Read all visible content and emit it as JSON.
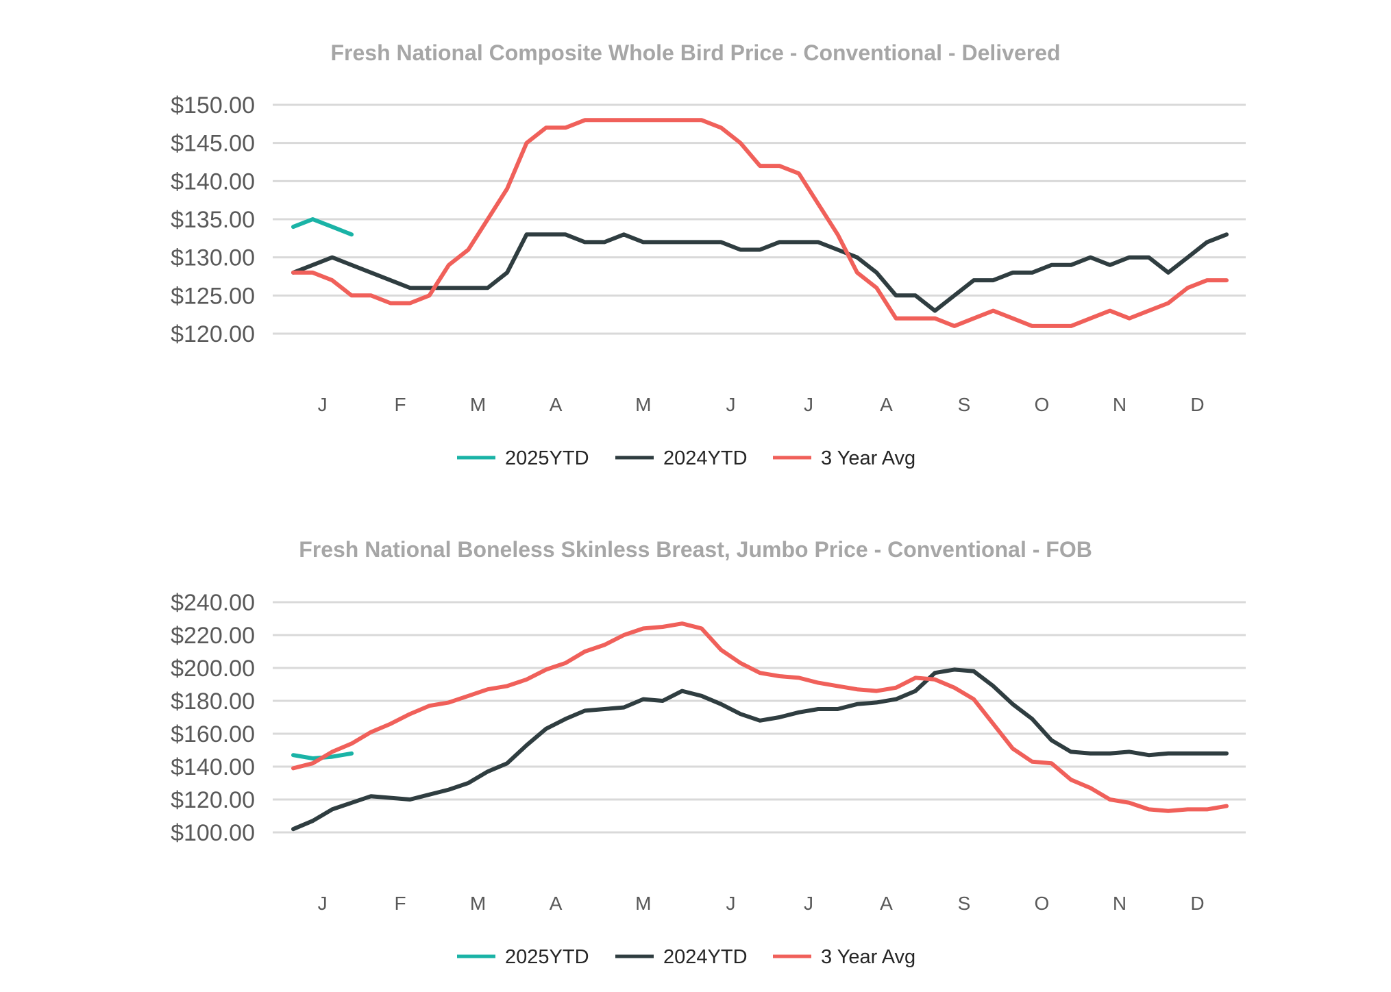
{
  "colors": {
    "s2025": "#1ab3a6",
    "s2024": "#2f3d40",
    "avg": "#f0605a",
    "grid": "#d9d9d9",
    "title": "#a6a6a6"
  },
  "chart_data": [
    {
      "type": "line",
      "title": "Fresh National Composite Whole Bird Price - Conventional - Delivered",
      "xlabel": "",
      "ylabel": "",
      "ylim": [
        120,
        150
      ],
      "yticks": [
        120,
        125,
        130,
        135,
        140,
        145,
        150
      ],
      "ytick_labels": [
        "$120.00",
        "$125.00",
        "$130.00",
        "$135.00",
        "$140.00",
        "$145.00",
        "$150.00"
      ],
      "x_range": [
        0,
        48
      ],
      "month_labels": [
        "J",
        "F",
        "M",
        "A",
        "M",
        "J",
        "J",
        "A",
        "S",
        "O",
        "N",
        "D"
      ],
      "month_positions": [
        1.5,
        5.5,
        9.5,
        13.5,
        18,
        22.5,
        26.5,
        30.5,
        34.5,
        38.5,
        42.5,
        46.5
      ],
      "series": [
        {
          "name": "2025YTD",
          "color": "#1ab3a6",
          "x": [
            0,
            1,
            2,
            3
          ],
          "values": [
            134,
            135,
            134,
            133
          ]
        },
        {
          "name": "2024YTD",
          "color": "#2f3d40",
          "x": [
            0,
            1,
            2,
            3,
            4,
            5,
            6,
            7,
            8,
            9,
            10,
            11,
            12,
            13,
            14,
            15,
            16,
            17,
            18,
            19,
            20,
            21,
            22,
            23,
            24,
            25,
            26,
            27,
            28,
            29,
            30,
            31,
            32,
            33,
            34,
            35,
            36,
            37,
            38,
            39,
            40,
            41,
            42,
            43,
            44,
            45,
            46,
            47,
            48
          ],
          "values": [
            128,
            129,
            130,
            129,
            128,
            127,
            126,
            126,
            126,
            126,
            126,
            128,
            133,
            133,
            133,
            132,
            132,
            133,
            132,
            132,
            132,
            132,
            132,
            131,
            131,
            132,
            132,
            132,
            131,
            130,
            128,
            125,
            125,
            123,
            125,
            127,
            127,
            128,
            128,
            129,
            129,
            130,
            129,
            130,
            130,
            128,
            130,
            132,
            133
          ]
        },
        {
          "name": "3 Year Avg",
          "color": "#f0605a",
          "x": [
            0,
            1,
            2,
            3,
            4,
            5,
            6,
            7,
            8,
            9,
            10,
            11,
            12,
            13,
            14,
            15,
            16,
            17,
            18,
            19,
            20,
            21,
            22,
            23,
            24,
            25,
            26,
            27,
            28,
            29,
            30,
            31,
            32,
            33,
            34,
            35,
            36,
            37,
            38,
            39,
            40,
            41,
            42,
            43,
            44,
            45,
            46,
            47,
            48
          ],
          "values": [
            128,
            128,
            127,
            125,
            125,
            124,
            124,
            125,
            129,
            131,
            135,
            139,
            145,
            147,
            147,
            148,
            148,
            148,
            148,
            148,
            148,
            148,
            147,
            145,
            142,
            142,
            141,
            137,
            133,
            128,
            126,
            122,
            122,
            122,
            121,
            122,
            123,
            122,
            121,
            121,
            121,
            122,
            123,
            122,
            123,
            124,
            126,
            127,
            127
          ]
        }
      ]
    },
    {
      "type": "line",
      "title": "Fresh National Boneless Skinless Breast, Jumbo Price - Conventional - FOB",
      "xlabel": "",
      "ylabel": "",
      "ylim": [
        100,
        240
      ],
      "yticks": [
        100,
        120,
        140,
        160,
        180,
        200,
        220,
        240
      ],
      "ytick_labels": [
        "$100.00",
        "$120.00",
        "$140.00",
        "$160.00",
        "$180.00",
        "$200.00",
        "$220.00",
        "$240.00"
      ],
      "x_range": [
        0,
        48
      ],
      "month_labels": [
        "J",
        "F",
        "M",
        "A",
        "M",
        "J",
        "J",
        "A",
        "S",
        "O",
        "N",
        "D"
      ],
      "month_positions": [
        1.5,
        5.5,
        9.5,
        13.5,
        18,
        22.5,
        26.5,
        30.5,
        34.5,
        38.5,
        42.5,
        46.5
      ],
      "series": [
        {
          "name": "2025YTD",
          "color": "#1ab3a6",
          "x": [
            0,
            1,
            2,
            3
          ],
          "values": [
            147,
            145,
            146,
            148
          ]
        },
        {
          "name": "2024YTD",
          "color": "#2f3d40",
          "x": [
            0,
            1,
            2,
            3,
            4,
            5,
            6,
            7,
            8,
            9,
            10,
            11,
            12,
            13,
            14,
            15,
            16,
            17,
            18,
            19,
            20,
            21,
            22,
            23,
            24,
            25,
            26,
            27,
            28,
            29,
            30,
            31,
            32,
            33,
            34,
            35,
            36,
            37,
            38,
            39,
            40,
            41,
            42,
            43,
            44,
            45,
            46,
            47,
            48
          ],
          "values": [
            102,
            107,
            114,
            118,
            122,
            121,
            120,
            123,
            126,
            130,
            137,
            142,
            153,
            163,
            169,
            174,
            175,
            176,
            181,
            180,
            186,
            183,
            178,
            172,
            168,
            170,
            173,
            175,
            175,
            178,
            179,
            181,
            186,
            197,
            199,
            198,
            189,
            178,
            169,
            156,
            149,
            148,
            148,
            149,
            147,
            148,
            148,
            148,
            148
          ]
        },
        {
          "name": "3 Year Avg",
          "color": "#f0605a",
          "x": [
            0,
            1,
            2,
            3,
            4,
            5,
            6,
            7,
            8,
            9,
            10,
            11,
            12,
            13,
            14,
            15,
            16,
            17,
            18,
            19,
            20,
            21,
            22,
            23,
            24,
            25,
            26,
            27,
            28,
            29,
            30,
            31,
            32,
            33,
            34,
            35,
            36,
            37,
            38,
            39,
            40,
            41,
            42,
            43,
            44,
            45,
            46,
            47,
            48
          ],
          "values": [
            139,
            142,
            149,
            154,
            161,
            166,
            172,
            177,
            179,
            183,
            187,
            189,
            193,
            199,
            203,
            210,
            214,
            220,
            224,
            225,
            227,
            224,
            211,
            203,
            197,
            195,
            194,
            191,
            189,
            187,
            186,
            188,
            194,
            193,
            188,
            181,
            166,
            151,
            143,
            142,
            132,
            127,
            120,
            118,
            114,
            113,
            114,
            114,
            116
          ]
        }
      ]
    }
  ],
  "legend": {
    "items": [
      "2025YTD",
      "2024YTD",
      "3 Year Avg"
    ]
  }
}
